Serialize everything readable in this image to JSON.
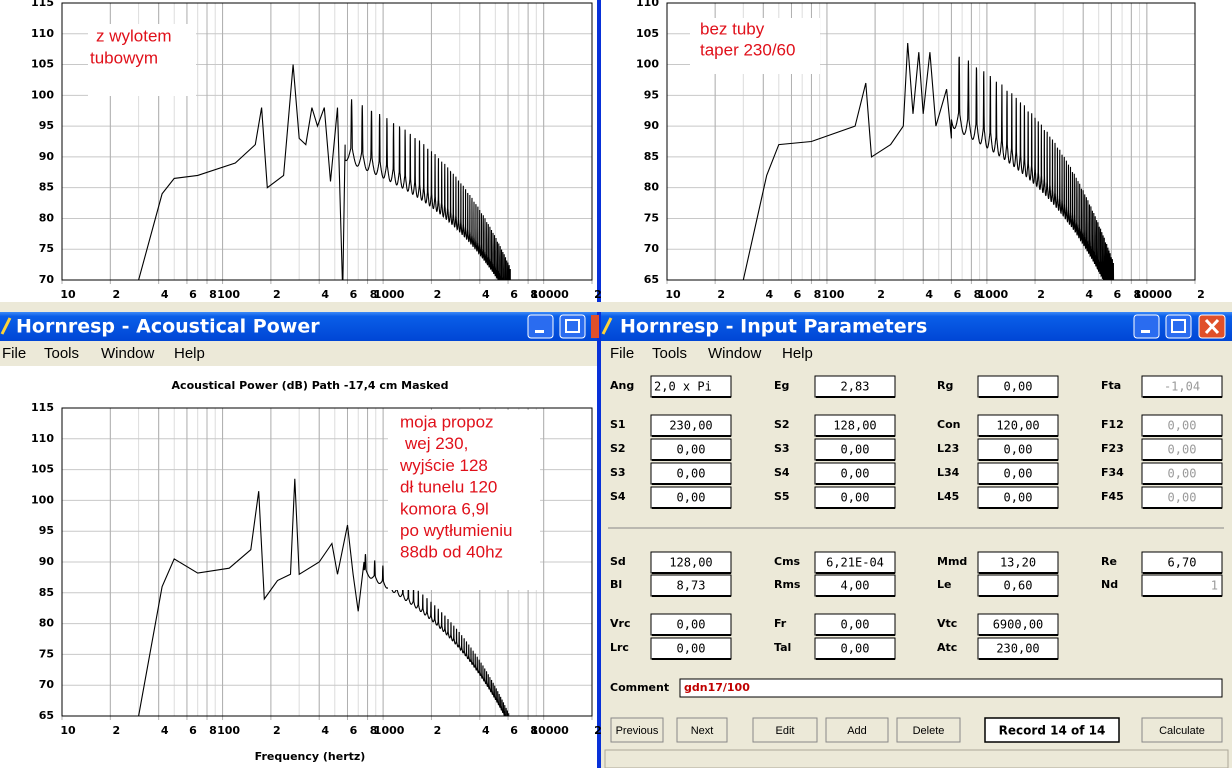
{
  "top_left": {
    "annotation": [
      "z wylotem",
      "tubowym"
    ],
    "ylim": [
      70,
      115
    ],
    "yticks": [
      70,
      75,
      80,
      85,
      90,
      95,
      100,
      105,
      110,
      115
    ],
    "xlim": [
      10,
      20000
    ],
    "xticks": [
      10,
      {
        "value": 20,
        "label": "2"
      },
      {
        "value": 40,
        "label": "4"
      },
      {
        "value": 60,
        "label": "6"
      },
      {
        "value": 80,
        "label": "8"
      },
      100,
      {
        "value": 200,
        "label": "2"
      },
      {
        "value": 400,
        "label": "4"
      },
      {
        "value": 600,
        "label": "6"
      },
      {
        "value": 800,
        "label": "8"
      },
      1000,
      {
        "value": 2000,
        "label": "2"
      },
      {
        "value": 4000,
        "label": "4"
      },
      {
        "value": 6000,
        "label": "6"
      },
      {
        "value": 8000,
        "label": "8"
      },
      10000,
      {
        "value": 20000,
        "label": "2"
      }
    ]
  },
  "top_right": {
    "annotation": [
      "bez tuby",
      "taper 230/60"
    ],
    "ylim": [
      65,
      110
    ],
    "yticks": [
      65,
      70,
      75,
      80,
      85,
      90,
      95,
      100,
      105,
      110
    ],
    "xlim": [
      10,
      20000
    ],
    "xticks": [
      10,
      {
        "value": 20,
        "label": "2"
      },
      {
        "value": 40,
        "label": "4"
      },
      {
        "value": 60,
        "label": "6"
      },
      {
        "value": 80,
        "label": "8"
      },
      100,
      {
        "value": 200,
        "label": "2"
      },
      {
        "value": 400,
        "label": "4"
      },
      {
        "value": 600,
        "label": "6"
      },
      {
        "value": 800,
        "label": "8"
      },
      1000,
      {
        "value": 2000,
        "label": "2"
      },
      {
        "value": 4000,
        "label": "4"
      },
      {
        "value": 6000,
        "label": "6"
      },
      {
        "value": 8000,
        "label": "8"
      },
      10000,
      {
        "value": 20000,
        "label": "2"
      }
    ]
  },
  "acoustical": {
    "title": "Hornresp - Acoustical Power",
    "menu": [
      "File",
      "Tools",
      "Window",
      "Help"
    ],
    "chart_title": "Acoustical Power (dB)   Path -17,4 cm   Masked",
    "xlabel": "Frequency (hertz)",
    "annotation": [
      "moja propoz",
      "wej 230,",
      "wyjście 128",
      "dł tunelu 120",
      "komora 6,9l",
      "po wytłumieniu",
      "88db od 40hz"
    ],
    "ylim": [
      65,
      115
    ],
    "yticks": [
      65,
      70,
      75,
      80,
      85,
      90,
      95,
      100,
      105,
      110,
      115
    ],
    "xlim": [
      10,
      20000
    ],
    "xticks": [
      10,
      {
        "value": 20,
        "label": "2"
      },
      {
        "value": 40,
        "label": "4"
      },
      {
        "value": 60,
        "label": "6"
      },
      {
        "value": 80,
        "label": "8"
      },
      100,
      {
        "value": 200,
        "label": "2"
      },
      {
        "value": 400,
        "label": "4"
      },
      {
        "value": 600,
        "label": "6"
      },
      {
        "value": 800,
        "label": "8"
      },
      1000,
      {
        "value": 2000,
        "label": "2"
      },
      {
        "value": 4000,
        "label": "4"
      },
      {
        "value": 6000,
        "label": "6"
      },
      {
        "value": 8000,
        "label": "8"
      },
      10000,
      {
        "value": 20000,
        "label": "2"
      }
    ]
  },
  "input": {
    "title": "Hornresp - Input Parameters",
    "menu": [
      "File",
      "Tools",
      "Window",
      "Help"
    ],
    "rows": [
      [
        {
          "label": "Ang",
          "value": "2,0 x Pi"
        },
        {
          "label": "Eg",
          "value": "2,83"
        },
        {
          "label": "Rg",
          "value": "0,00"
        },
        {
          "label": "Fta",
          "value": "-1,04"
        }
      ],
      [
        {
          "label": "S1",
          "value": "230,00"
        },
        {
          "label": "S2",
          "value": "128,00"
        },
        {
          "label": "Con",
          "value": "120,00"
        },
        {
          "label": "F12",
          "value": "0,00"
        }
      ],
      [
        {
          "label": "S2",
          "value": "0,00"
        },
        {
          "label": "S3",
          "value": "0,00"
        },
        {
          "label": "L23",
          "value": "0,00"
        },
        {
          "label": "F23",
          "value": "0,00"
        }
      ],
      [
        {
          "label": "S3",
          "value": "0,00"
        },
        {
          "label": "S4",
          "value": "0,00"
        },
        {
          "label": "L34",
          "value": "0,00"
        },
        {
          "label": "F34",
          "value": "0,00"
        }
      ],
      [
        {
          "label": "S4",
          "value": "0,00"
        },
        {
          "label": "S5",
          "value": "0,00"
        },
        {
          "label": "L45",
          "value": "0,00"
        },
        {
          "label": "F45",
          "value": "0,00"
        }
      ],
      [
        {
          "label": "Sd",
          "value": "128,00"
        },
        {
          "label": "Cms",
          "value": "6,21E-04"
        },
        {
          "label": "Mmd",
          "value": "13,20"
        },
        {
          "label": "Re",
          "value": "6,70"
        }
      ],
      [
        {
          "label": "Bl",
          "value": "8,73"
        },
        {
          "label": "Rms",
          "value": "4,00"
        },
        {
          "label": "Le",
          "value": "0,60"
        },
        {
          "label": "Nd",
          "value": "1"
        }
      ],
      [
        {
          "label": "Vrc",
          "value": "0,00"
        },
        {
          "label": "Fr",
          "value": "0,00"
        },
        {
          "label": "Vtc",
          "value": "6900,00"
        }
      ],
      [
        {
          "label": "Lrc",
          "value": "0,00"
        },
        {
          "label": "Tal",
          "value": "0,00"
        },
        {
          "label": "Atc",
          "value": "230,00"
        }
      ]
    ],
    "comment_label": "Comment",
    "comment": "gdn17/100",
    "buttons": [
      "Previous",
      "Next",
      "Edit",
      "Add",
      "Delete"
    ],
    "record": "Record 14 of 14",
    "calculate": "Calculate"
  }
}
